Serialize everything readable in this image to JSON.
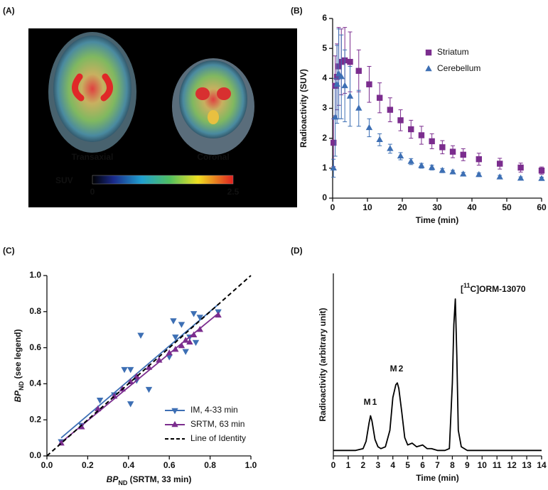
{
  "chart_data": [
    {
      "type": "image",
      "panel_label": "(A)",
      "labels": [
        "Transaxial",
        "Coronal"
      ],
      "colorbar": {
        "label": "SUV",
        "range": [
          0,
          2.5
        ],
        "ticks": [
          0,
          2.5
        ]
      }
    },
    {
      "type": "scatter",
      "panel_label": "(B)",
      "xlabel": "Time (min)",
      "ylabel": "Radioactivity (SUV)",
      "xlim": [
        0,
        60
      ],
      "xticks": [
        0,
        10,
        20,
        30,
        40,
        50,
        60
      ],
      "ylim": [
        0,
        6
      ],
      "yticks": [
        0,
        1,
        2,
        3,
        4,
        5,
        6
      ],
      "legend": "upper right",
      "series": [
        {
          "name": "Striatum",
          "color": "#7b2d8e",
          "marker": "square",
          "x": [
            0.25,
            0.75,
            1.25,
            1.75,
            2.5,
            3.5,
            5,
            7.5,
            10.5,
            13.5,
            16.5,
            19.5,
            22.5,
            25.5,
            28.5,
            31.5,
            34.5,
            37.5,
            42,
            48,
            54,
            60
          ],
          "values": [
            1.85,
            3.75,
            4.05,
            4.4,
            4.55,
            4.6,
            4.55,
            4.25,
            3.8,
            3.35,
            2.95,
            2.6,
            2.3,
            2.1,
            1.9,
            1.7,
            1.55,
            1.45,
            1.3,
            1.15,
            1.02,
            0.92
          ],
          "errors": [
            0.8,
            1.0,
            1.1,
            1.3,
            1.1,
            1.1,
            1.0,
            0.7,
            0.6,
            0.5,
            0.4,
            0.35,
            0.3,
            0.3,
            0.25,
            0.22,
            0.2,
            0.2,
            0.2,
            0.18,
            0.15,
            0.12
          ]
        },
        {
          "name": "Cerebellum",
          "color": "#3d6fb4",
          "marker": "triangle-up",
          "x": [
            0.25,
            0.75,
            1.25,
            1.75,
            2.5,
            3.5,
            5,
            7.5,
            10.5,
            13.5,
            16.5,
            19.5,
            22.5,
            25.5,
            28.5,
            31.5,
            34.5,
            37.5,
            42,
            48,
            54,
            60
          ],
          "values": [
            1.0,
            2.7,
            3.8,
            4.15,
            4.05,
            3.75,
            3.4,
            3.0,
            2.35,
            1.95,
            1.65,
            1.4,
            1.22,
            1.08,
            1.02,
            0.92,
            0.87,
            0.8,
            0.78,
            0.7,
            0.66,
            0.65
          ],
          "errors": [
            0.3,
            1.3,
            1.3,
            1.5,
            1.4,
            1.2,
            1.0,
            0.6,
            0.3,
            0.2,
            0.15,
            0.12,
            0.1,
            0.08,
            0.08,
            0.07,
            0.06,
            0.06,
            0.06,
            0.06,
            0.05,
            0.05
          ]
        }
      ]
    },
    {
      "type": "scatter",
      "panel_label": "(C)",
      "xlabel": [
        "BP",
        "ND",
        " (SRTM, 33 min)"
      ],
      "ylabel": [
        "BP",
        "ND",
        " (see legend)"
      ],
      "xlim": [
        0,
        1
      ],
      "xticks": [
        {
          "value": 0,
          "label": "0.0"
        },
        0.2,
        0.4,
        0.6,
        0.8,
        {
          "value": 1,
          "label": "1.0"
        }
      ],
      "ylim": [
        0,
        1
      ],
      "yticks": [
        {
          "value": 0,
          "label": "0.0"
        },
        0.2,
        0.4,
        0.6,
        0.8,
        {
          "value": 1,
          "label": "1.0"
        }
      ],
      "legend": "lower right",
      "series": [
        {
          "name": "IM, 4-33 min",
          "color": "#3d6fb4",
          "marker": "triangle-down",
          "x": [
            0.07,
            0.17,
            0.26,
            0.33,
            0.38,
            0.41,
            0.41,
            0.44,
            0.46,
            0.5,
            0.6,
            0.62,
            0.63,
            0.66,
            0.68,
            0.7,
            0.72,
            0.73,
            0.75,
            0.84
          ],
          "values": [
            0.08,
            0.17,
            0.31,
            0.34,
            0.48,
            0.48,
            0.29,
            0.42,
            0.67,
            0.37,
            0.55,
            0.75,
            0.66,
            0.73,
            0.58,
            0.66,
            0.79,
            0.63,
            0.77,
            0.8
          ],
          "fit": {
            "x": [
              0.07,
              0.84
            ],
            "values": [
              0.1,
              0.84
            ]
          }
        },
        {
          "name": "SRTM, 63 min",
          "color": "#7b2d8e",
          "marker": "triangle-up",
          "x": [
            0.07,
            0.17,
            0.25,
            0.33,
            0.37,
            0.41,
            0.44,
            0.5,
            0.55,
            0.6,
            0.63,
            0.66,
            0.68,
            0.7,
            0.72,
            0.75,
            0.84
          ],
          "values": [
            0.07,
            0.16,
            0.26,
            0.33,
            0.37,
            0.41,
            0.44,
            0.49,
            0.53,
            0.57,
            0.59,
            0.61,
            0.64,
            0.63,
            0.67,
            0.7,
            0.78
          ],
          "fit": {
            "x": [
              0.07,
              0.84
            ],
            "values": [
              0.075,
              0.79
            ]
          }
        },
        {
          "name": "Line of Identity",
          "color": "#000000",
          "marker": "dashed-line",
          "x": [
            0,
            1
          ],
          "values": [
            0,
            1
          ]
        }
      ]
    },
    {
      "type": "line",
      "panel_label": "(D)",
      "xlabel": "Time (min)",
      "ylabel": "Radioactivity (arbitrary unit)",
      "xlim": [
        0,
        14
      ],
      "xticks": [
        0,
        1,
        2,
        3,
        4,
        5,
        6,
        7,
        8,
        9,
        10,
        11,
        12,
        13,
        14
      ],
      "ylim": [
        0,
        100
      ],
      "annotations": [
        "M1",
        "M2"
      ],
      "peak_label": [
        "[",
        "11",
        "C]ORM-13070"
      ],
      "x": [
        0,
        0.5,
        1,
        1.5,
        2,
        2.2,
        2.4,
        2.5,
        2.6,
        2.8,
        3,
        3.2,
        3.5,
        3.8,
        4,
        4.2,
        4.3,
        4.4,
        4.6,
        4.8,
        5,
        5.3,
        5.6,
        6,
        6.3,
        6.6,
        7,
        7.5,
        7.8,
        8,
        8.1,
        8.2,
        8.3,
        8.4,
        8.6,
        9,
        9.5,
        10,
        11,
        12,
        13,
        14
      ],
      "series": [
        {
          "name": "Radioactivity",
          "color": "#000000",
          "values": [
            3,
            3,
            3,
            3,
            4,
            8,
            18,
            22,
            19,
            9,
            5,
            4,
            5,
            14,
            32,
            39,
            40,
            37,
            24,
            10,
            6,
            7,
            5,
            6,
            4,
            4,
            3,
            3,
            4,
            40,
            72,
            86,
            55,
            14,
            5,
            3,
            3,
            3,
            3,
            3,
            3,
            3
          ]
        }
      ]
    }
  ]
}
